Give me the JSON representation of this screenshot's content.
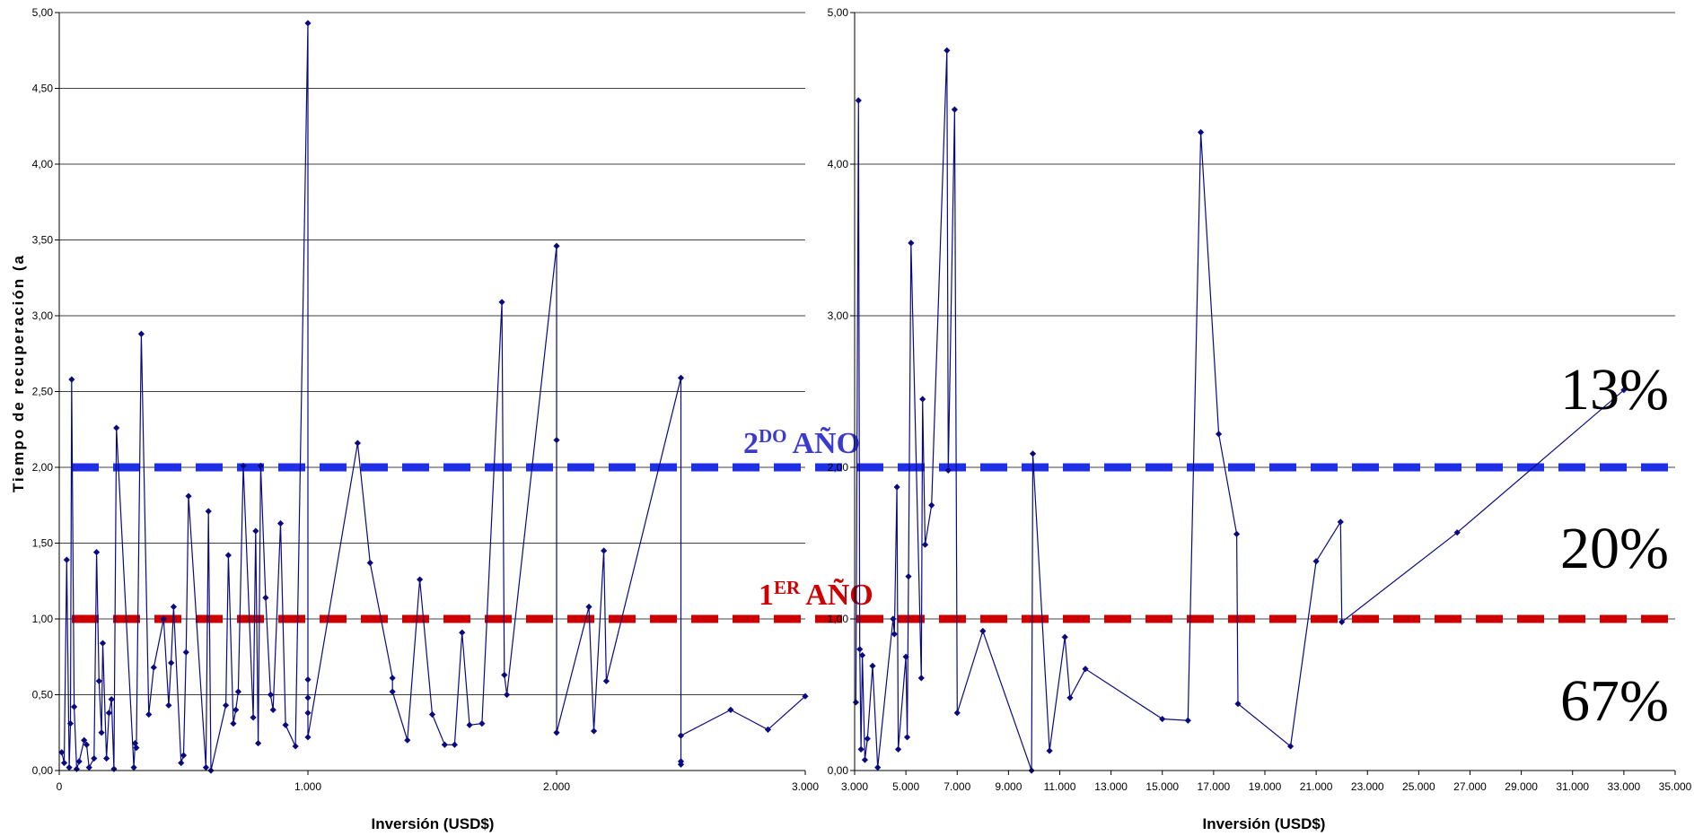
{
  "thresholds": [
    {
      "y": 2,
      "label_main": "2",
      "label_sup": "DO",
      "label_rest": "AÑO",
      "color": "#1f2fe6",
      "label_color": "#3a3ad0"
    },
    {
      "y": 1,
      "label_main": "1",
      "label_sup": "ER",
      "label_rest": "AÑO",
      "color": "#cc0000",
      "label_color": "#cc0000"
    }
  ],
  "percentages": [
    "13%",
    "20%",
    "67%"
  ],
  "chart_data": [
    {
      "type": "line",
      "markers": "diamond",
      "color": "#0a0a80",
      "xlabel": "Inversión (USD$)",
      "ylabel": "Tiempo de recuperación (a",
      "xlim": [
        0,
        3000
      ],
      "ylim": [
        0,
        5
      ],
      "xticks": [
        {
          "v": 0,
          "label": "0"
        },
        {
          "v": 1000,
          "label": "1.000"
        },
        {
          "v": 2000,
          "label": "2.000"
        },
        {
          "v": 3000,
          "label": "3.000"
        }
      ],
      "yticks": [
        {
          "v": 0,
          "label": "0,00"
        },
        {
          "v": 0.5,
          "label": "0,50"
        },
        {
          "v": 1,
          "label": "1,00"
        },
        {
          "v": 1.5,
          "label": "1,50"
        },
        {
          "v": 2,
          "label": "2,00"
        },
        {
          "v": 2.5,
          "label": "2,50"
        },
        {
          "v": 3,
          "label": "3,00"
        },
        {
          "v": 3.5,
          "label": "3,50"
        },
        {
          "v": 4,
          "label": "4,00"
        },
        {
          "v": 4.5,
          "label": "4,50"
        },
        {
          "v": 5,
          "label": "5,00"
        }
      ],
      "points": [
        [
          10,
          0.12
        ],
        [
          20,
          0.05
        ],
        [
          30,
          1.39
        ],
        [
          40,
          0.02
        ],
        [
          45,
          0.31
        ],
        [
          50,
          2.58
        ],
        [
          60,
          0.42
        ],
        [
          70,
          0.01
        ],
        [
          80,
          0.06
        ],
        [
          100,
          0.2
        ],
        [
          110,
          0.17
        ],
        [
          120,
          0.02
        ],
        [
          140,
          0.08
        ],
        [
          150,
          1.44
        ],
        [
          160,
          0.59
        ],
        [
          170,
          0.25
        ],
        [
          175,
          0.84
        ],
        [
          190,
          0.08
        ],
        [
          200,
          0.38
        ],
        [
          210,
          0.47
        ],
        [
          220,
          0.01
        ],
        [
          230,
          2.26
        ],
        [
          300,
          0.02
        ],
        [
          305,
          0.18
        ],
        [
          310,
          0.15
        ],
        [
          330,
          2.88
        ],
        [
          360,
          0.37
        ],
        [
          380,
          0.68
        ],
        [
          420,
          1.0
        ],
        [
          440,
          0.43
        ],
        [
          450,
          0.71
        ],
        [
          460,
          1.08
        ],
        [
          490,
          0.05
        ],
        [
          500,
          0.1
        ],
        [
          510,
          0.78
        ],
        [
          520,
          1.81
        ],
        [
          590,
          0.02
        ],
        [
          600,
          1.71
        ],
        [
          610,
          0.0
        ],
        [
          670,
          0.43
        ],
        [
          680,
          1.42
        ],
        [
          700,
          0.31
        ],
        [
          710,
          0.4
        ],
        [
          720,
          0.52
        ],
        [
          740,
          2.01
        ],
        [
          780,
          0.35
        ],
        [
          790,
          1.58
        ],
        [
          800,
          0.18
        ],
        [
          810,
          2.01
        ],
        [
          830,
          1.14
        ],
        [
          850,
          0.5
        ],
        [
          860,
          0.4
        ],
        [
          890,
          1.63
        ],
        [
          910,
          0.3
        ],
        [
          950,
          0.16
        ],
        [
          1000,
          4.93
        ],
        [
          1000,
          0.6
        ],
        [
          1000,
          0.48
        ],
        [
          1000,
          0.38
        ],
        [
          1000,
          0.22
        ],
        [
          1200,
          2.16
        ],
        [
          1250,
          1.37
        ],
        [
          1340,
          0.61
        ],
        [
          1340,
          0.52
        ],
        [
          1400,
          0.2
        ],
        [
          1450,
          1.26
        ],
        [
          1500,
          0.37
        ],
        [
          1550,
          0.17
        ],
        [
          1590,
          0.17
        ],
        [
          1620,
          0.91
        ],
        [
          1650,
          0.3
        ],
        [
          1700,
          0.31
        ],
        [
          1780,
          3.09
        ],
        [
          1790,
          0.63
        ],
        [
          1800,
          0.5
        ],
        [
          2000,
          3.46
        ],
        [
          2000,
          2.18
        ],
        [
          2000,
          0.25
        ],
        [
          2130,
          1.08
        ],
        [
          2150,
          0.26
        ],
        [
          2190,
          1.45
        ],
        [
          2200,
          0.59
        ],
        [
          2500,
          2.59
        ],
        [
          2500,
          0.06
        ],
        [
          2500,
          0.04
        ],
        [
          2500,
          0.23
        ],
        [
          2700,
          0.4
        ],
        [
          2850,
          0.27
        ],
        [
          3000,
          0.49
        ]
      ]
    },
    {
      "type": "line",
      "markers": "diamond",
      "color": "#0a0a80",
      "xlabel": "Inversión (USD$)",
      "xlim": [
        3000,
        35000
      ],
      "ylim": [
        0,
        5
      ],
      "xticks": [
        {
          "v": 3000,
          "label": "3.000"
        },
        {
          "v": 5000,
          "label": "5.000"
        },
        {
          "v": 7000,
          "label": "7.000"
        },
        {
          "v": 9000,
          "label": "9.000"
        },
        {
          "v": 11000,
          "label": "11.000"
        },
        {
          "v": 13000,
          "label": "13.000"
        },
        {
          "v": 15000,
          "label": "15.000"
        },
        {
          "v": 17000,
          "label": "17.000"
        },
        {
          "v": 19000,
          "label": "19.000"
        },
        {
          "v": 21000,
          "label": "21.000"
        },
        {
          "v": 23000,
          "label": "23.000"
        },
        {
          "v": 25000,
          "label": "25.000"
        },
        {
          "v": 27000,
          "label": "27.000"
        },
        {
          "v": 29000,
          "label": "29.000"
        },
        {
          "v": 31000,
          "label": "31.000"
        },
        {
          "v": 33000,
          "label": "33.000"
        },
        {
          "v": 35000,
          "label": "35.000"
        }
      ],
      "yticks": [
        {
          "v": 0,
          "label": "0,00"
        },
        {
          "v": 1,
          "label": "1,00"
        },
        {
          "v": 2,
          "label": "2,00"
        },
        {
          "v": 3,
          "label": "3,00"
        },
        {
          "v": 4,
          "label": "4,00"
        },
        {
          "v": 5,
          "label": "5,00"
        }
      ],
      "points": [
        [
          3050,
          0.45
        ],
        [
          3150,
          4.42
        ],
        [
          3200,
          0.8
        ],
        [
          3250,
          0.14
        ],
        [
          3300,
          0.76
        ],
        [
          3400,
          0.07
        ],
        [
          3500,
          0.21
        ],
        [
          3700,
          0.69
        ],
        [
          3900,
          0.02
        ],
        [
          4500,
          1.0
        ],
        [
          4550,
          0.9
        ],
        [
          4650,
          1.87
        ],
        [
          4700,
          0.14
        ],
        [
          5000,
          0.75
        ],
        [
          5050,
          0.22
        ],
        [
          5100,
          1.28
        ],
        [
          5200,
          3.48
        ],
        [
          5600,
          0.61
        ],
        [
          5650,
          2.45
        ],
        [
          5750,
          1.49
        ],
        [
          6000,
          1.75
        ],
        [
          6600,
          4.75
        ],
        [
          6650,
          1.98
        ],
        [
          6900,
          4.36
        ],
        [
          7000,
          0.38
        ],
        [
          8000,
          0.92
        ],
        [
          9900,
          0.0
        ],
        [
          9950,
          2.09
        ],
        [
          10600,
          0.13
        ],
        [
          11200,
          0.88
        ],
        [
          11400,
          0.48
        ],
        [
          12000,
          0.67
        ],
        [
          15000,
          0.34
        ],
        [
          16000,
          0.33
        ],
        [
          16500,
          4.21
        ],
        [
          17200,
          2.22
        ],
        [
          17900,
          1.56
        ],
        [
          17950,
          0.44
        ],
        [
          20000,
          0.16
        ],
        [
          21000,
          1.38
        ],
        [
          21950,
          1.64
        ],
        [
          22000,
          0.98
        ],
        [
          26500,
          1.57
        ],
        [
          33000,
          2.51
        ]
      ]
    }
  ]
}
